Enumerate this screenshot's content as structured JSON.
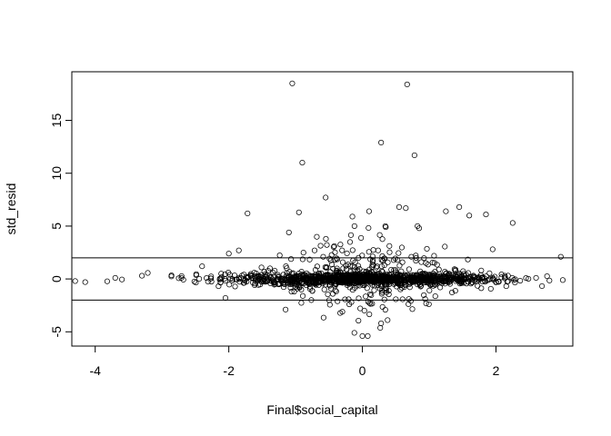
{
  "chart_data": {
    "type": "scatter",
    "xlabel": "Final$social_capital",
    "ylabel": "std_resid",
    "xlim": [
      -4.35,
      3.15
    ],
    "ylim": [
      -6.35,
      19.6
    ],
    "xticks": [
      -4,
      -2,
      0,
      2
    ],
    "yticks": [
      -5,
      0,
      5,
      10,
      15
    ],
    "hlines": [
      2,
      -2
    ],
    "grid": false,
    "legend": "none",
    "marker": "open-circle",
    "colors": {
      "marker": "#000000",
      "frame": "#000000",
      "background": "#ffffff"
    },
    "notable_points": [
      {
        "x": -1.05,
        "y": 18.5
      },
      {
        "x": 0.67,
        "y": 18.4
      },
      {
        "x": 0.28,
        "y": 12.9
      },
      {
        "x": 0.78,
        "y": 11.7
      },
      {
        "x": -0.9,
        "y": 11.0
      },
      {
        "x": -0.55,
        "y": 7.7
      },
      {
        "x": 1.45,
        "y": 6.8
      },
      {
        "x": 0.55,
        "y": 6.8
      },
      {
        "x": 0.65,
        "y": 6.7
      },
      {
        "x": 1.25,
        "y": 6.4
      },
      {
        "x": -0.95,
        "y": 6.3
      },
      {
        "x": 0.1,
        "y": 6.4
      },
      {
        "x": -1.72,
        "y": 6.2
      },
      {
        "x": 1.85,
        "y": 6.1
      },
      {
        "x": 1.6,
        "y": 6.0
      },
      {
        "x": -0.15,
        "y": 5.9
      },
      {
        "x": 2.25,
        "y": 5.3
      },
      {
        "x": 0.85,
        "y": 4.8
      },
      {
        "x": 0.35,
        "y": 4.9
      },
      {
        "x": -1.1,
        "y": 4.4
      },
      {
        "x": 1.95,
        "y": 2.8
      },
      {
        "x": 2.97,
        "y": 2.1
      },
      {
        "x": -1.15,
        "y": -2.9
      },
      {
        "x": -0.3,
        "y": -3.1
      },
      {
        "x": 0.28,
        "y": -4.2
      },
      {
        "x": -0.12,
        "y": -5.1
      },
      {
        "x": 0.0,
        "y": -5.4
      },
      {
        "x": 0.08,
        "y": -5.4
      },
      {
        "x": 0.03,
        "y": -3.0
      },
      {
        "x": -4.3,
        "y": -0.2
      },
      {
        "x": -4.15,
        "y": -0.3
      },
      {
        "x": -3.7,
        "y": 0.1
      },
      {
        "x": -3.6,
        "y": -0.05
      },
      {
        "x": -3.3,
        "y": 0.3
      },
      {
        "x": -2.4,
        "y": 1.2
      },
      {
        "x": -2.0,
        "y": 2.4
      },
      {
        "x": -1.85,
        "y": 2.7
      },
      {
        "x": 2.8,
        "y": -0.15
      },
      {
        "x": 2.6,
        "y": 0.1
      },
      {
        "x": -2.05,
        "y": -1.8
      }
    ],
    "bulk_cloud": {
      "count": 1450,
      "x_mean": 0.0,
      "x_sd": 0.95,
      "x_min": -4.3,
      "x_max": 3.0,
      "y_center": 0.0,
      "y_core_sd": 0.3,
      "y_spread_near_zero": 1.3,
      "y_min": -5.5,
      "y_max": 5.0
    }
  }
}
